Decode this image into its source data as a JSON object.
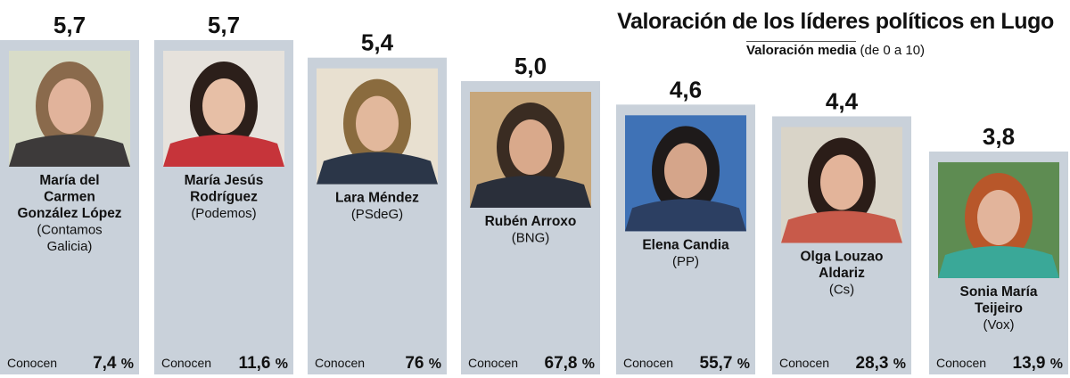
{
  "title": "Valoración de los líderes políticos en Lugo",
  "subtitle_main": "Valoración media",
  "subtitle_range": "(de 0 a 10)",
  "chart_data": {
    "type": "bar",
    "title": "Valoración de los líderes políticos en Lugo",
    "subtitle": "Valoración media (de 0 a 10)",
    "ylim": [
      0,
      10
    ],
    "categories": [
      "María del Carmen González López",
      "María Jesús Rodríguez",
      "Lara Méndez",
      "Rubén Arroxo",
      "Elena Candia",
      "Olga Louzao Aldariz",
      "Sonia María Teijeiro"
    ],
    "series": [
      {
        "values": [
          5.7,
          5.7,
          5.4,
          5.0,
          4.6,
          4.4,
          3.8
        ]
      }
    ],
    "leaders": [
      {
        "name_lines": [
          "María del",
          "Carmen",
          "González López"
        ],
        "party_lines": [
          "(Contamos",
          "Galicia)"
        ],
        "rating": 5.7,
        "rating_label": "5,7",
        "known_label": "Conocen",
        "known": 7.4,
        "known_value": "7,4",
        "known_unit": "%"
      },
      {
        "name_lines": [
          "María Jesús",
          "Rodríguez"
        ],
        "party_lines": [
          "(Podemos)"
        ],
        "rating": 5.7,
        "rating_label": "5,7",
        "known_label": "Conocen",
        "known": 11.6,
        "known_value": "11,6",
        "known_unit": "%"
      },
      {
        "name_lines": [
          "Lara Méndez"
        ],
        "party_lines": [
          "(PSdeG)"
        ],
        "rating": 5.4,
        "rating_label": "5,4",
        "known_label": "Conocen",
        "known": 76,
        "known_value": "76",
        "known_unit": "%"
      },
      {
        "name_lines": [
          "Rubén Arroxo"
        ],
        "party_lines": [
          "(BNG)"
        ],
        "rating": 5.0,
        "rating_label": "5,0",
        "known_label": "Conocen",
        "known": 67.8,
        "known_value": "67,8",
        "known_unit": "%"
      },
      {
        "name_lines": [
          "Elena Candia"
        ],
        "party_lines": [
          "(PP)"
        ],
        "rating": 4.6,
        "rating_label": "4,6",
        "known_label": "Conocen",
        "known": 55.7,
        "known_value": "55,7",
        "known_unit": "%"
      },
      {
        "name_lines": [
          "Olga Louzao",
          "Aldariz"
        ],
        "party_lines": [
          "(Cs)"
        ],
        "rating": 4.4,
        "rating_label": "4,4",
        "known_label": "Conocen",
        "known": 28.3,
        "known_value": "28,3",
        "known_unit": "%"
      },
      {
        "name_lines": [
          "Sonia María",
          "Teijeiro"
        ],
        "party_lines": [
          "(Vox)"
        ],
        "rating": 3.8,
        "rating_label": "3,8",
        "known_label": "Conocen",
        "known": 13.9,
        "known_value": "13,9",
        "known_unit": "%"
      }
    ],
    "colors": {
      "bar": "#c9d1da",
      "text": "#111111"
    },
    "photo_icons": [
      "portrait-icon"
    ]
  }
}
